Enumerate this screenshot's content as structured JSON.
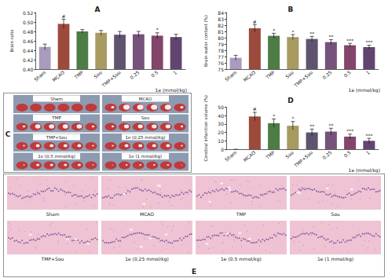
{
  "chart_data": [
    {
      "type": "bar",
      "title": "A",
      "y_label": "Brain ratio",
      "x_label": "1e (mmol/kg)",
      "categories": [
        "Sham",
        "MCAO",
        "TMP",
        "Sou",
        "TMP+Sou",
        "0.25",
        "0.5",
        "1"
      ],
      "values": [
        0.447,
        0.496,
        0.48,
        0.477,
        0.473,
        0.474,
        0.471,
        0.468
      ],
      "errors": [
        0.006,
        0.01,
        0.004,
        0.005,
        0.007,
        0.006,
        0.006,
        0.006
      ],
      "annotations": [
        null,
        "#",
        null,
        null,
        null,
        null,
        "*",
        null
      ],
      "colors": [
        "#a99bbd",
        "#9c4a3c",
        "#4e7c45",
        "#a99a62",
        "#5f5470",
        "#76537a",
        "#84456a",
        "#62456e"
      ],
      "ylim": [
        0.4,
        0.52
      ],
      "yticks": [
        {
          "value": 0.4,
          "label": "0.40"
        },
        0.42,
        0.44,
        0.46,
        0.48,
        {
          "value": 0.5,
          "label": "0.50"
        },
        0.52
      ],
      "grid": false
    },
    {
      "type": "bar",
      "title": "B",
      "y_label": "Brain water content (%)",
      "x_label": "1e (mmol/kg)",
      "categories": [
        "Sham",
        "MCAO",
        "TMP",
        "Sou",
        "TMP+Sou",
        "0.25",
        "0.5",
        "1"
      ],
      "values": [
        76.8,
        81.5,
        80.3,
        80.1,
        79.8,
        79.3,
        78.8,
        78.5
      ],
      "errors": [
        0.4,
        0.6,
        0.4,
        0.4,
        0.4,
        0.4,
        0.3,
        0.3
      ],
      "annotations": [
        null,
        "#",
        "*",
        "*",
        "**",
        "**",
        "***",
        "***"
      ],
      "colors": [
        "#a99bbd",
        "#9c4a3c",
        "#4e7c45",
        "#a99a62",
        "#5f5470",
        "#76537a",
        "#84456a",
        "#62456e"
      ],
      "ylim": [
        75,
        84
      ],
      "yticks": [
        75,
        76,
        77,
        78,
        79,
        80,
        81,
        82,
        83,
        84
      ],
      "grid": false
    },
    {
      "type": "bar",
      "title": "D",
      "y_label": "Cerebral infarction volume (%)",
      "x_label": "1e (mmol/kg)",
      "categories": [
        "Sham",
        "MCAO",
        "TMP",
        "Sou",
        "TMP+Sou",
        "0.25",
        "0.5",
        "1"
      ],
      "values": [
        0,
        39,
        31,
        28,
        20,
        21,
        15,
        10
      ],
      "errors": [
        0,
        5,
        5,
        5,
        4,
        4,
        3,
        3
      ],
      "annotations": [
        null,
        "#",
        "*",
        "*",
        "**",
        "**",
        "***",
        "***"
      ],
      "colors": [
        "#a99bbd",
        "#9c4a3c",
        "#4e7c45",
        "#a99a62",
        "#5f5470",
        "#76537a",
        "#84456a",
        "#62456e"
      ],
      "ylim": [
        0,
        50
      ],
      "yticks": [
        0,
        10,
        20,
        30,
        40,
        50
      ],
      "grid": false
    }
  ],
  "image_panels": [
    {
      "title": "C",
      "labels": [
        "Sham",
        "MCAO",
        "TMP",
        "Sou",
        "TMP+Sou",
        "1e (0.25 mmol/kg)",
        "1e (0.5 mmol/kg)",
        "1e (1 mmol/kg)"
      ]
    },
    {
      "title": "E",
      "labels": [
        "Sham",
        "MCAO",
        "TMP",
        "Sou",
        "TMP+Sou",
        "1e (0.25 mmol/kg)",
        "1e (0.5 mmol/kg)",
        "1e (1 mmol/kg)"
      ]
    }
  ]
}
